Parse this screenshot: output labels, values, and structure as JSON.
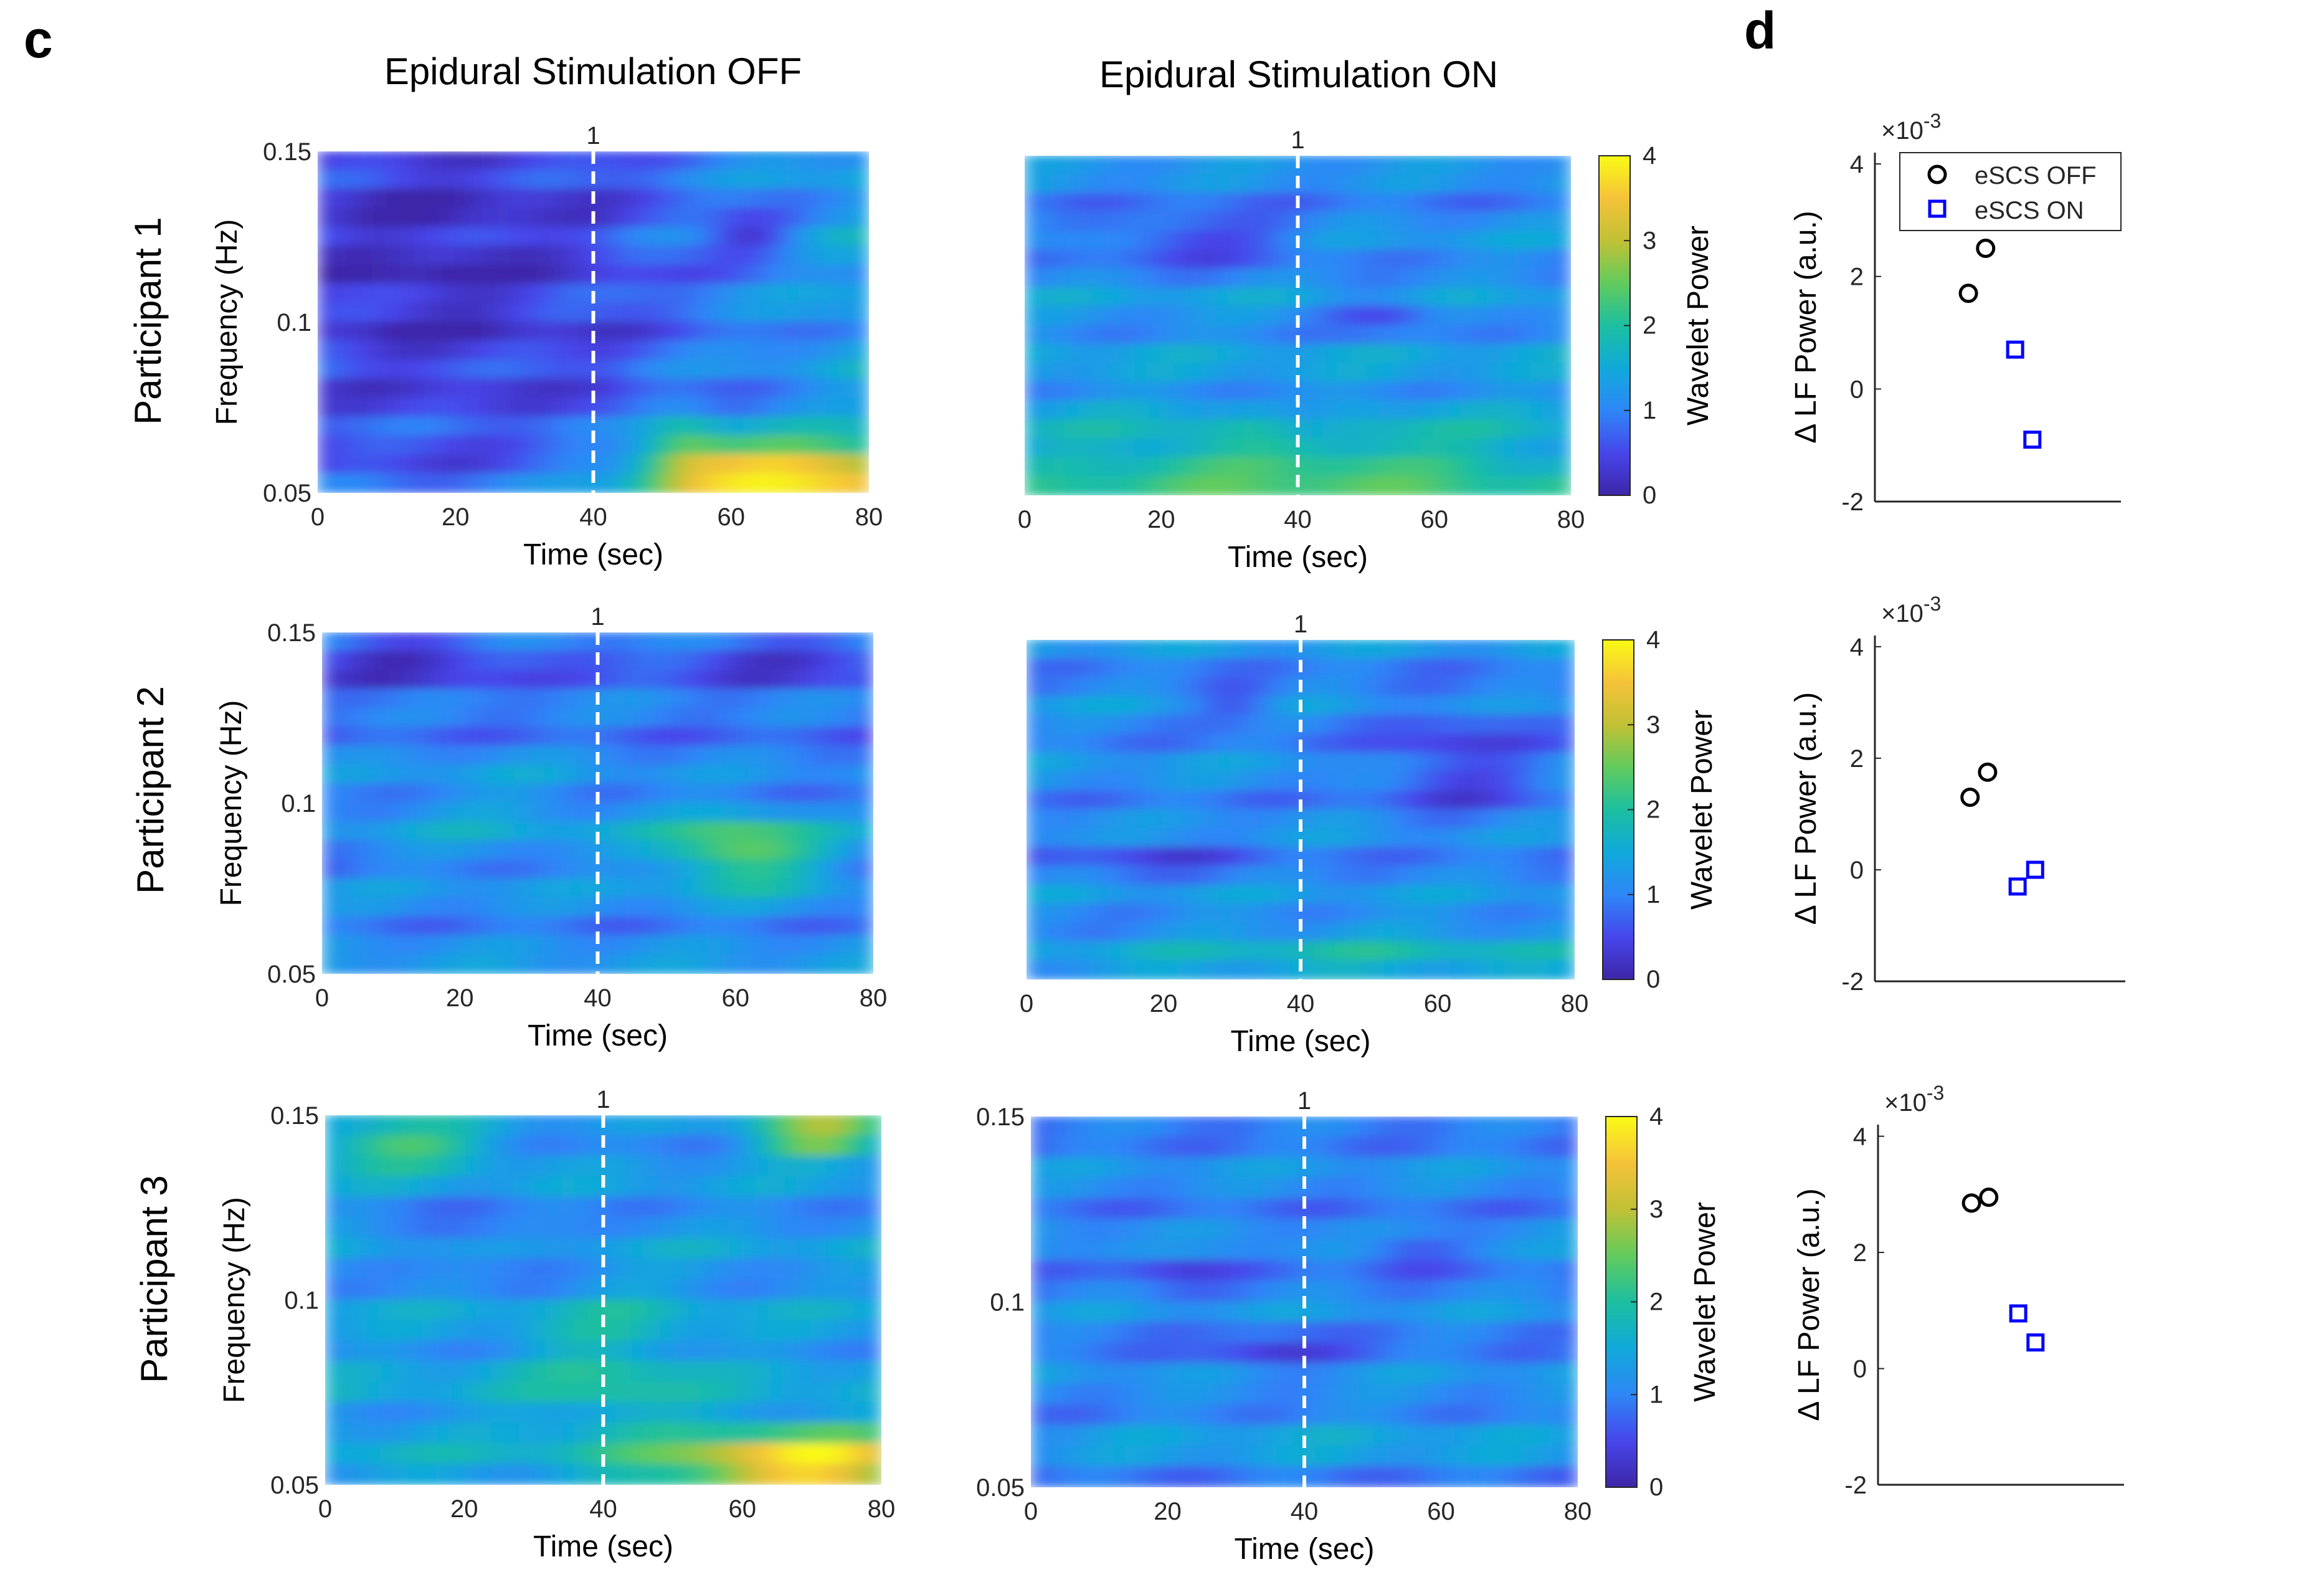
{
  "panel_labels": {
    "c": "c",
    "d": "d"
  },
  "column_titles": [
    "Epidural Stimulation OFF",
    "Epidural Stimulation ON"
  ],
  "row_labels": [
    "Participant 1",
    "Participant 2",
    "Participant 3"
  ],
  "chart_data": [
    {
      "type": "heatmap",
      "panel": "c",
      "description": "Wavelet power spectrograms, 3 participants x 2 conditions",
      "xlabel": "Time (sec)",
      "ylabel": "Frequency (Hz)",
      "colorbar_label": "Wavelet Power",
      "x_ticks": [
        0,
        20,
        40,
        60,
        80
      ],
      "y_tick_labels": [
        "0.05",
        "0.1",
        "0.15"
      ],
      "y_ticks": [
        0.05,
        0.1,
        0.15
      ],
      "colorbar_ticks": [
        0,
        1,
        2,
        3,
        4
      ],
      "xlim": [
        0,
        80
      ],
      "ylim": [
        0.05,
        0.15
      ],
      "clim": [
        0,
        4
      ],
      "event_marker": {
        "x": 40,
        "label": "1",
        "style": "white dashed"
      },
      "colormap": "parula",
      "conditions": [
        "Epidural Stimulation OFF",
        "Epidural Stimulation ON"
      ],
      "participants": [
        "Participant 1",
        "Participant 2",
        "Participant 3"
      ]
    },
    {
      "type": "scatter",
      "panel": "d",
      "ylabel": "Δ LF Power (a.u.)",
      "y_multiplier": "×10",
      "y_multiplier_exp": "-3",
      "y_ticks": [
        -2,
        0,
        2,
        4
      ],
      "ylim": [
        -2,
        4.2
      ],
      "legend": [
        {
          "name": "eSCS OFF",
          "marker": "circle",
          "color": "#000000"
        },
        {
          "name": "eSCS ON",
          "marker": "square",
          "color": "#0000ff"
        }
      ],
      "subplots": [
        {
          "participant": "Participant 1",
          "off": [
            1.7,
            2.5
          ],
          "on": [
            0.7,
            -0.9
          ]
        },
        {
          "participant": "Participant 2",
          "off": [
            1.3,
            1.75
          ],
          "on": [
            -0.3,
            0.0
          ]
        },
        {
          "participant": "Participant 3",
          "off": [
            2.85,
            2.95
          ],
          "on": [
            0.95,
            0.45
          ]
        }
      ]
    }
  ]
}
